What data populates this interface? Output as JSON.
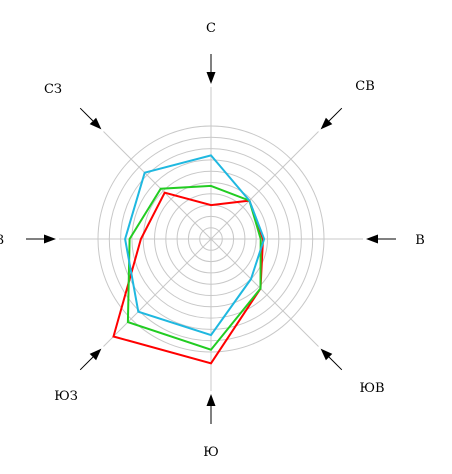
{
  "chart_data": {
    "type": "radar",
    "directions": [
      "С",
      "СВ",
      "В",
      "ЮВ",
      "Ю",
      "ЮЗ",
      "З",
      "СЗ"
    ],
    "rings": 10,
    "rmax": 10,
    "grid": true,
    "series": [
      {
        "color": "#ff0000",
        "values": [
          3.0,
          4.8,
          4.6,
          6.2,
          11.0,
          12.2,
          6.2,
          5.8
        ]
      },
      {
        "color": "#22cc22",
        "values": [
          4.7,
          4.8,
          4.4,
          6.2,
          9.8,
          10.4,
          7.2,
          6.3
        ]
      },
      {
        "color": "#1fb8e0",
        "values": [
          7.4,
          4.8,
          4.7,
          5.0,
          8.5,
          9.1,
          7.6,
          8.3
        ]
      }
    ]
  },
  "labels": {
    "n": "С",
    "ne": "СВ",
    "e": "В",
    "se": "ЮВ",
    "s": "Ю",
    "sw": "ЮЗ",
    "w": "З",
    "nw": "СЗ"
  }
}
